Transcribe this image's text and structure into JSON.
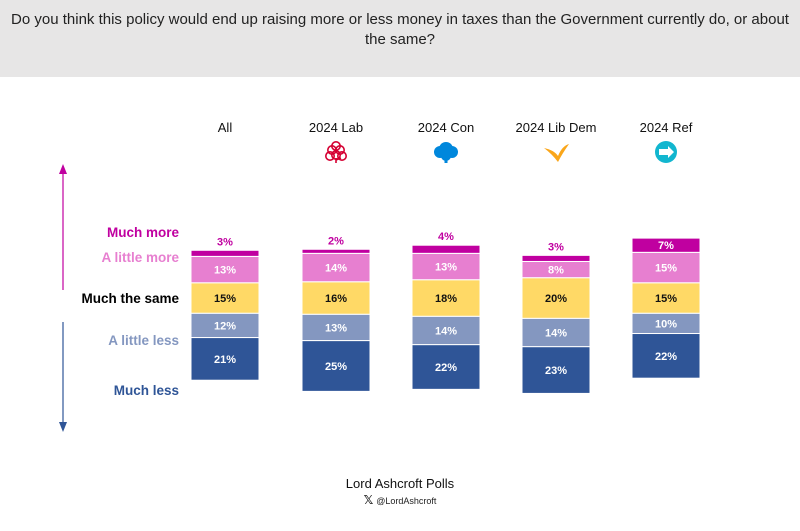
{
  "question": "Do you think this policy would end up raising more or less money in taxes than the Government currently do, or about the same?",
  "source": "Lord Ashcroft Polls",
  "social_handle": "@LordAshcroft",
  "social_icon": "x-logo-icon",
  "chart_data": {
    "type": "bar",
    "stacked": true,
    "categories": [
      "All",
      "2024 Lab",
      "2024 Con",
      "2024 Lib Dem",
      "2024 Ref"
    ],
    "category_icons": [
      "",
      "labour-rose-icon",
      "conservative-tree-icon",
      "libdem-bird-icon",
      "reform-arrow-icon"
    ],
    "series": [
      {
        "name": "Much less",
        "color": "#2f5597",
        "label_color": "#2f5597",
        "values": [
          21,
          25,
          22,
          23,
          22
        ]
      },
      {
        "name": "A little less",
        "color": "#8497c0",
        "label_color": "#8497c0",
        "values": [
          12,
          13,
          14,
          14,
          10
        ]
      },
      {
        "name": "Much the same",
        "color": "#ffd966",
        "label_color": "#000000",
        "values": [
          15,
          16,
          18,
          20,
          15
        ]
      },
      {
        "name": "A little more",
        "color": "#e77fd0",
        "label_color": "#e77fd0",
        "values": [
          13,
          14,
          13,
          8,
          15
        ]
      },
      {
        "name": "Much more",
        "color": "#c000a0",
        "label_color": "#c000a0",
        "values": [
          3,
          2,
          4,
          3,
          7
        ]
      }
    ],
    "value_suffix": "%",
    "baseline_series": "Much the same",
    "legend": "left",
    "grid": false
  }
}
